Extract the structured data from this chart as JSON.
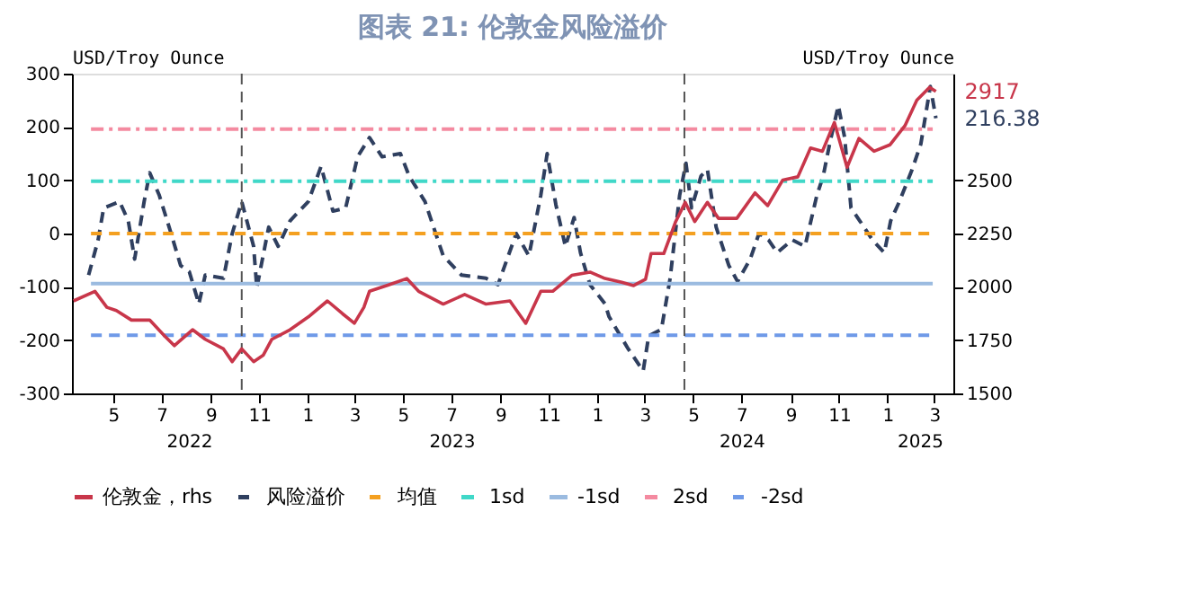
{
  "chart_data": {
    "type": "line",
    "title": "图表 21: 伦敦金风险溢价",
    "ylabel": "USD/Troy Ounce",
    "y2label": "USD/Troy Ounce",
    "xlim": [
      "2022-03-10",
      "2025-03-25"
    ],
    "xticks": [
      {
        "value": "2022-05",
        "label": "5"
      },
      {
        "value": "2022-07",
        "label": "7"
      },
      {
        "value": "2022-09",
        "label": "9"
      },
      {
        "value": "2022-11",
        "label": "11"
      },
      {
        "value": "2023-01",
        "label": "1"
      },
      {
        "value": "2023-03",
        "label": "3"
      },
      {
        "value": "2023-05",
        "label": "5"
      },
      {
        "value": "2023-07",
        "label": "7"
      },
      {
        "value": "2023-09",
        "label": "9"
      },
      {
        "value": "2023-11",
        "label": "11"
      },
      {
        "value": "2024-01",
        "label": "1"
      },
      {
        "value": "2024-03",
        "label": "3"
      },
      {
        "value": "2024-05",
        "label": "5"
      },
      {
        "value": "2024-07",
        "label": "7"
      },
      {
        "value": "2024-09",
        "label": "9"
      },
      {
        "value": "2024-11",
        "label": "11"
      },
      {
        "value": "2025-01",
        "label": "1"
      },
      {
        "value": "2025-03",
        "label": "3"
      }
    ],
    "ylim": [
      -300,
      300
    ],
    "yticks": [
      -300,
      -200,
      -100,
      0,
      100,
      200,
      300
    ],
    "y2lim": [
      1500,
      3000
    ],
    "y2ticks": [
      1500,
      1750,
      2000,
      2250,
      2500
    ],
    "grid": false,
    "legend": "bottom",
    "annotations": [
      "2022",
      "2023",
      "2024",
      "2025"
    ],
    "ref_lines": [
      {
        "axis": "x",
        "value": "2022-10-10",
        "label": null,
        "color": "#555555",
        "line_style": "dashed"
      },
      {
        "axis": "x",
        "value": "2024-04-20",
        "label": null,
        "color": "#555555",
        "line_style": "dashed"
      }
    ],
    "series": [
      {
        "name": "伦敦金，rhs",
        "axis": "y2",
        "color": "#c8364a",
        "line_style": "solid",
        "x": [
          "2022-03-12",
          "2022-04-08",
          "2022-04-23",
          "2022-05-05",
          "2022-05-24",
          "2022-06-16",
          "2022-07-05",
          "2022-07-17",
          "2022-08-09",
          "2022-08-25",
          "2022-09-17",
          "2022-09-28",
          "2022-10-10",
          "2022-10-25",
          "2022-11-06",
          "2022-11-17",
          "2022-12-10",
          "2023-01-02",
          "2023-01-26",
          "2023-02-14",
          "2023-03-01",
          "2023-03-13",
          "2023-03-20",
          "2023-04-13",
          "2023-05-06",
          "2023-05-21",
          "2023-06-21",
          "2023-07-18",
          "2023-08-14",
          "2023-09-13",
          "2023-10-03",
          "2023-10-22",
          "2023-11-06",
          "2023-11-30",
          "2023-12-23",
          "2024-01-11",
          "2024-02-01",
          "2024-02-16",
          "2024-03-02",
          "2024-03-09",
          "2024-03-25",
          "2024-04-09",
          "2024-04-21",
          "2024-05-03",
          "2024-05-19",
          "2024-06-02",
          "2024-06-25",
          "2024-07-18",
          "2024-08-03",
          "2024-08-22",
          "2024-09-10",
          "2024-09-26",
          "2024-10-11",
          "2024-10-26",
          "2024-11-11",
          "2024-11-26",
          "2024-12-15",
          "2025-01-04",
          "2025-01-23",
          "2025-02-07",
          "2025-02-23",
          "2025-03-03"
        ],
        "values": [
          1934,
          1979,
          1904,
          1889,
          1844,
          1844,
          1769,
          1724,
          1799,
          1754,
          1709,
          1649,
          1709,
          1649,
          1679,
          1754,
          1799,
          1859,
          1934,
          1874,
          1829,
          1904,
          1979,
          2009,
          2039,
          1979,
          1919,
          1964,
          1919,
          1934,
          1829,
          1979,
          1979,
          2054,
          2069,
          2039,
          2021,
          2006,
          2036,
          2156,
          2156,
          2306,
          2396,
          2306,
          2396,
          2321,
          2321,
          2441,
          2381,
          2501,
          2516,
          2651,
          2636,
          2771,
          2561,
          2696,
          2636,
          2666,
          2756,
          2876,
          2936,
          2917
        ],
        "value_labels": [
          null,
          null,
          null,
          null,
          null,
          null,
          null,
          null,
          null,
          null,
          null,
          null,
          null,
          null,
          null,
          null,
          null,
          null,
          null,
          null,
          null,
          null,
          null,
          null,
          null,
          null,
          null,
          null,
          null,
          null,
          null,
          null,
          null,
          null,
          null,
          null,
          null,
          null,
          null,
          null,
          null,
          null,
          null,
          null,
          null,
          null,
          null,
          null,
          null,
          null,
          null,
          null,
          null,
          null,
          null,
          null,
          null,
          null,
          null,
          null,
          null,
          "2917"
        ]
      },
      {
        "name": "风险溢价",
        "color": "#2f3f5f",
        "line_style": "dashed",
        "x": [
          "2022-03-31",
          "2022-04-12",
          "2022-04-19",
          "2022-05-09",
          "2022-05-20",
          "2022-05-28",
          "2022-06-09",
          "2022-06-16",
          "2022-06-28",
          "2022-07-13",
          "2022-07-25",
          "2022-08-05",
          "2022-08-17",
          "2022-08-25",
          "2022-09-17",
          "2022-09-28",
          "2022-10-10",
          "2022-10-25",
          "2022-10-29",
          "2022-11-13",
          "2022-11-25",
          "2022-12-10",
          "2023-01-02",
          "2023-01-18",
          "2023-02-02",
          "2023-02-18",
          "2023-03-05",
          "2023-03-20",
          "2023-04-05",
          "2023-04-28",
          "2023-05-09",
          "2023-05-29",
          "2023-06-21",
          "2023-07-14",
          "2023-08-14",
          "2023-08-29",
          "2023-09-21",
          "2023-10-07",
          "2023-10-22",
          "2023-10-30",
          "2023-11-10",
          "2023-11-22",
          "2023-12-03",
          "2023-12-11",
          "2023-12-23",
          "2024-01-11",
          "2024-01-16",
          "2024-02-09",
          "2024-02-28",
          "2024-03-06",
          "2024-03-22",
          "2024-04-02",
          "2024-04-14",
          "2024-04-22",
          "2024-04-29",
          "2024-05-11",
          "2024-05-19",
          "2024-05-30",
          "2024-06-15",
          "2024-06-26",
          "2024-07-12",
          "2024-07-23",
          "2024-08-04",
          "2024-08-15",
          "2024-09-03",
          "2024-09-19",
          "2024-10-04",
          "2024-10-12",
          "2024-10-20",
          "2024-10-31",
          "2024-11-08",
          "2024-11-16",
          "2024-11-27",
          "2024-12-13",
          "2024-12-28",
          "2025-01-05",
          "2025-01-16",
          "2025-02-01",
          "2025-02-12",
          "2025-02-24",
          "2025-03-03"
        ],
        "values": [
          -78,
          -12,
          48,
          60,
          24,
          -48,
          60,
          114,
          72,
          0,
          -60,
          -72,
          -132,
          -78,
          -84,
          0,
          60,
          -24,
          -102,
          12,
          -24,
          24,
          60,
          126,
          42,
          48,
          144,
          180,
          144,
          150,
          108,
          60,
          -42,
          -78,
          -84,
          -96,
          0,
          -42,
          72,
          150,
          54,
          -24,
          30,
          -36,
          -96,
          -132,
          -156,
          -216,
          -258,
          -192,
          -180,
          -84,
          72,
          132,
          48,
          108,
          120,
          12,
          -60,
          -90,
          -48,
          0,
          -12,
          -36,
          -12,
          -24,
          72,
          108,
          168,
          240,
          180,
          48,
          24,
          -12,
          -36,
          24,
          60,
          120,
          168,
          276,
          216.38
        ],
        "value_labels": [
          null,
          null,
          null,
          null,
          null,
          null,
          null,
          null,
          null,
          null,
          null,
          null,
          null,
          null,
          null,
          null,
          null,
          null,
          null,
          null,
          null,
          null,
          null,
          null,
          null,
          null,
          null,
          null,
          null,
          null,
          null,
          null,
          null,
          null,
          null,
          null,
          null,
          null,
          null,
          null,
          null,
          null,
          null,
          null,
          null,
          null,
          null,
          null,
          null,
          null,
          null,
          null,
          null,
          null,
          null,
          null,
          null,
          null,
          null,
          null,
          null,
          null,
          null,
          null,
          null,
          null,
          null,
          null,
          null,
          null,
          null,
          null,
          null,
          null,
          null,
          null,
          null,
          null,
          null,
          null,
          "216.38"
        ]
      },
      {
        "name": "均值",
        "color": "#f4a020",
        "line_style": "dashed",
        "x": [
          "2022-04-03",
          "2025-02-27"
        ],
        "values": [
          0,
          0
        ]
      },
      {
        "name": "1sd",
        "color": "#40d8c8",
        "line_style": "dotted",
        "x": [
          "2022-04-03",
          "2025-02-27"
        ],
        "values": [
          98,
          98
        ]
      },
      {
        "name": "-1sd",
        "color": "#9bbbe0",
        "line_style": "solid",
        "x": [
          "2022-04-03",
          "2025-02-27"
        ],
        "values": [
          -94,
          -94
        ]
      },
      {
        "name": "2sd",
        "color": "#f48aa0",
        "line_style": "dotted",
        "x": [
          "2022-04-03",
          "2025-02-27"
        ],
        "values": [
          196,
          196
        ]
      },
      {
        "name": "-2sd",
        "color": "#6f9ae8",
        "line_style": "dashed",
        "x": [
          "2022-04-03",
          "2025-02-27"
        ],
        "values": [
          -191,
          -191
        ]
      }
    ]
  }
}
